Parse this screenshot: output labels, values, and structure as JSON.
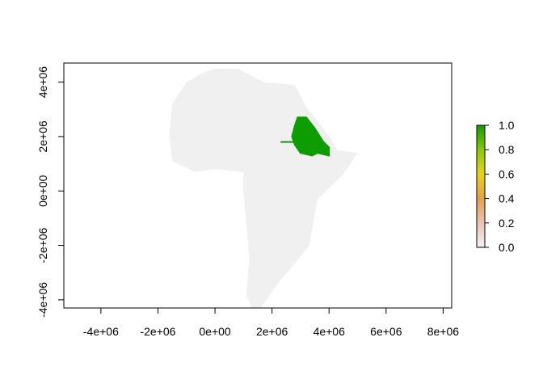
{
  "chart_data": {
    "type": "heatmap",
    "title": "",
    "xlabel": "",
    "ylabel": "",
    "xlim": [
      -5300000,
      8300000
    ],
    "ylim": [
      -4300000,
      4700000
    ],
    "x_ticks": [
      {
        "value": -4000000,
        "label": "-4e+06"
      },
      {
        "value": -2000000,
        "label": "-2e+06"
      },
      {
        "value": 0,
        "label": "0e+00"
      },
      {
        "value": 2000000,
        "label": "2e+06"
      },
      {
        "value": 4000000,
        "label": "4e+06"
      },
      {
        "value": 6000000,
        "label": "6e+06"
      },
      {
        "value": 8000000,
        "label": "8e+06"
      }
    ],
    "y_ticks": [
      {
        "value": -4000000,
        "label": "-4e+06"
      },
      {
        "value": -2000000,
        "label": "-2e+06"
      },
      {
        "value": 0,
        "label": "0e+00"
      },
      {
        "value": 2000000,
        "label": "2e+06"
      },
      {
        "value": 4000000,
        "label": "4e+06"
      }
    ],
    "background_region": {
      "value": 0,
      "color": "#f0f0f0",
      "outline": [
        [
          -500000,
          4300000
        ],
        [
          0,
          4500000
        ],
        [
          800000,
          4500000
        ],
        [
          1700000,
          4000000
        ],
        [
          2800000,
          3900000
        ],
        [
          3200000,
          3100000
        ],
        [
          4000000,
          2000000
        ],
        [
          4300000,
          1500000
        ],
        [
          5000000,
          1400000
        ],
        [
          4500000,
          600000
        ],
        [
          3600000,
          -300000
        ],
        [
          3300000,
          -2000000
        ],
        [
          2700000,
          -2800000
        ],
        [
          2200000,
          -3400000
        ],
        [
          1600000,
          -4300000
        ],
        [
          1300000,
          -4300000
        ],
        [
          1100000,
          -3800000
        ],
        [
          1200000,
          -2500000
        ],
        [
          1100000,
          -1200000
        ],
        [
          1000000,
          -100000
        ],
        [
          1000000,
          700000
        ],
        [
          0,
          800000
        ],
        [
          -700000,
          700000
        ],
        [
          -1500000,
          1100000
        ],
        [
          -1600000,
          2000000
        ],
        [
          -1500000,
          3200000
        ],
        [
          -1000000,
          4000000
        ]
      ]
    },
    "highlight_region": {
      "value": 1,
      "color": "#0e9d00",
      "outline": [
        [
          2800000,
          2400000
        ],
        [
          2900000,
          2700000
        ],
        [
          3200000,
          2700000
        ],
        [
          3500000,
          2300000
        ],
        [
          3800000,
          1800000
        ],
        [
          4000000,
          1600000
        ],
        [
          4000000,
          1300000
        ],
        [
          3600000,
          1400000
        ],
        [
          3400000,
          1300000
        ],
        [
          3000000,
          1400000
        ],
        [
          2800000,
          1700000
        ],
        [
          2700000,
          2000000
        ]
      ],
      "tail": [
        [
          2300000,
          1800000
        ],
        [
          2800000,
          1800000
        ]
      ]
    },
    "legend": {
      "placement": "right",
      "min": 0,
      "max": 1,
      "tick_values": [
        0,
        0.2,
        0.4,
        0.6,
        0.8,
        1
      ],
      "tick_labels": [
        "0.0",
        "0.2",
        "0.4",
        "0.6",
        "0.8",
        "1.0"
      ],
      "colors": [
        "#f2f2f2",
        "#ecc2b3",
        "#e69f4a",
        "#e6d514",
        "#89c800",
        "#0e9d00"
      ]
    },
    "grid": false
  }
}
